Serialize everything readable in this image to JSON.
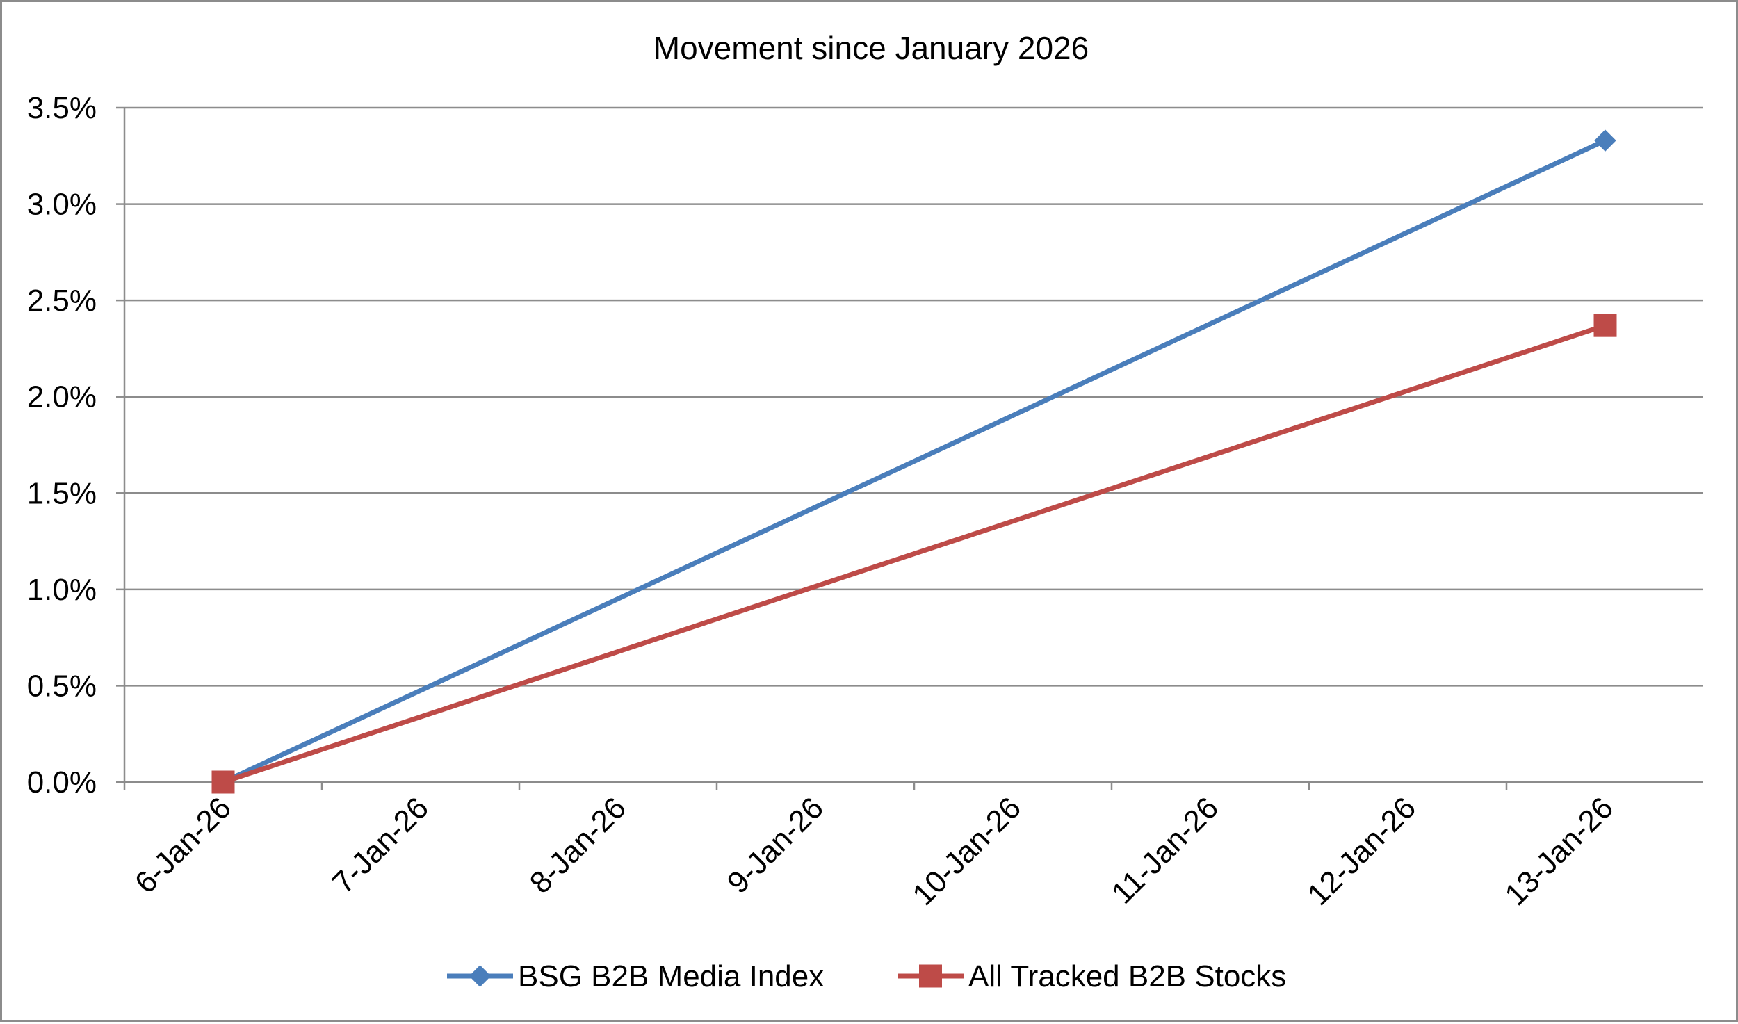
{
  "chart_data": {
    "type": "line",
    "title": "Movement since January 2026",
    "xlabel": "",
    "ylabel": "",
    "categories": [
      "6-Jan-26",
      "7-Jan-26",
      "8-Jan-26",
      "9-Jan-26",
      "10-Jan-26",
      "11-Jan-26",
      "12-Jan-26",
      "13-Jan-26"
    ],
    "y_tick_labels": [
      "0.0%",
      "0.5%",
      "1.0%",
      "1.5%",
      "2.0%",
      "2.5%",
      "3.0%",
      "3.5%"
    ],
    "ylim": [
      0,
      3.5
    ],
    "y_unit": "%",
    "grid": true,
    "legend_position": "bottom",
    "series": [
      {
        "name": "BSG B2B Media Index",
        "color": "#4a7ebb",
        "marker": "diamond",
        "points": [
          {
            "x": "6-Jan-26",
            "y": 0.0
          },
          {
            "x": "13-Jan-26",
            "y": 3.33
          }
        ]
      },
      {
        "name": "All Tracked B2B Stocks",
        "color": "#be4b48",
        "marker": "square",
        "points": [
          {
            "x": "6-Jan-26",
            "y": 0.0
          },
          {
            "x": "13-Jan-26",
            "y": 2.37
          }
        ]
      }
    ]
  }
}
